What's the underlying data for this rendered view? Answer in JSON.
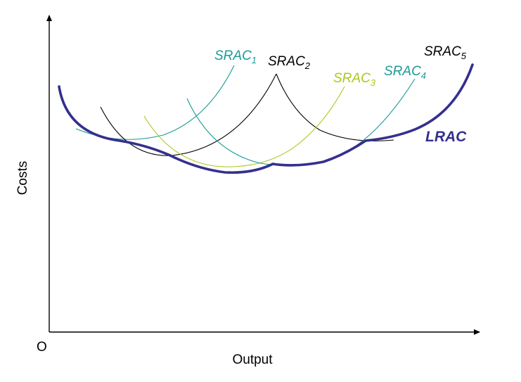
{
  "axes": {
    "y_label": "Costs",
    "x_label": "Output",
    "origin_label": "O"
  },
  "curves": {
    "srac1": {
      "base": "SRAC",
      "sub": "1",
      "color": "#1a9a96"
    },
    "srac2": {
      "base": "SRAC",
      "sub": "2",
      "color": "#000000"
    },
    "srac3": {
      "base": "SRAC",
      "sub": "3",
      "color": "#a8c81e"
    },
    "srac4": {
      "base": "SRAC",
      "sub": "4",
      "color": "#1a9a96"
    },
    "srac5": {
      "base": "SRAC",
      "sub": "5",
      "color": "#000000"
    },
    "lrac": {
      "label": "LRAC",
      "color": "#34308e"
    }
  }
}
